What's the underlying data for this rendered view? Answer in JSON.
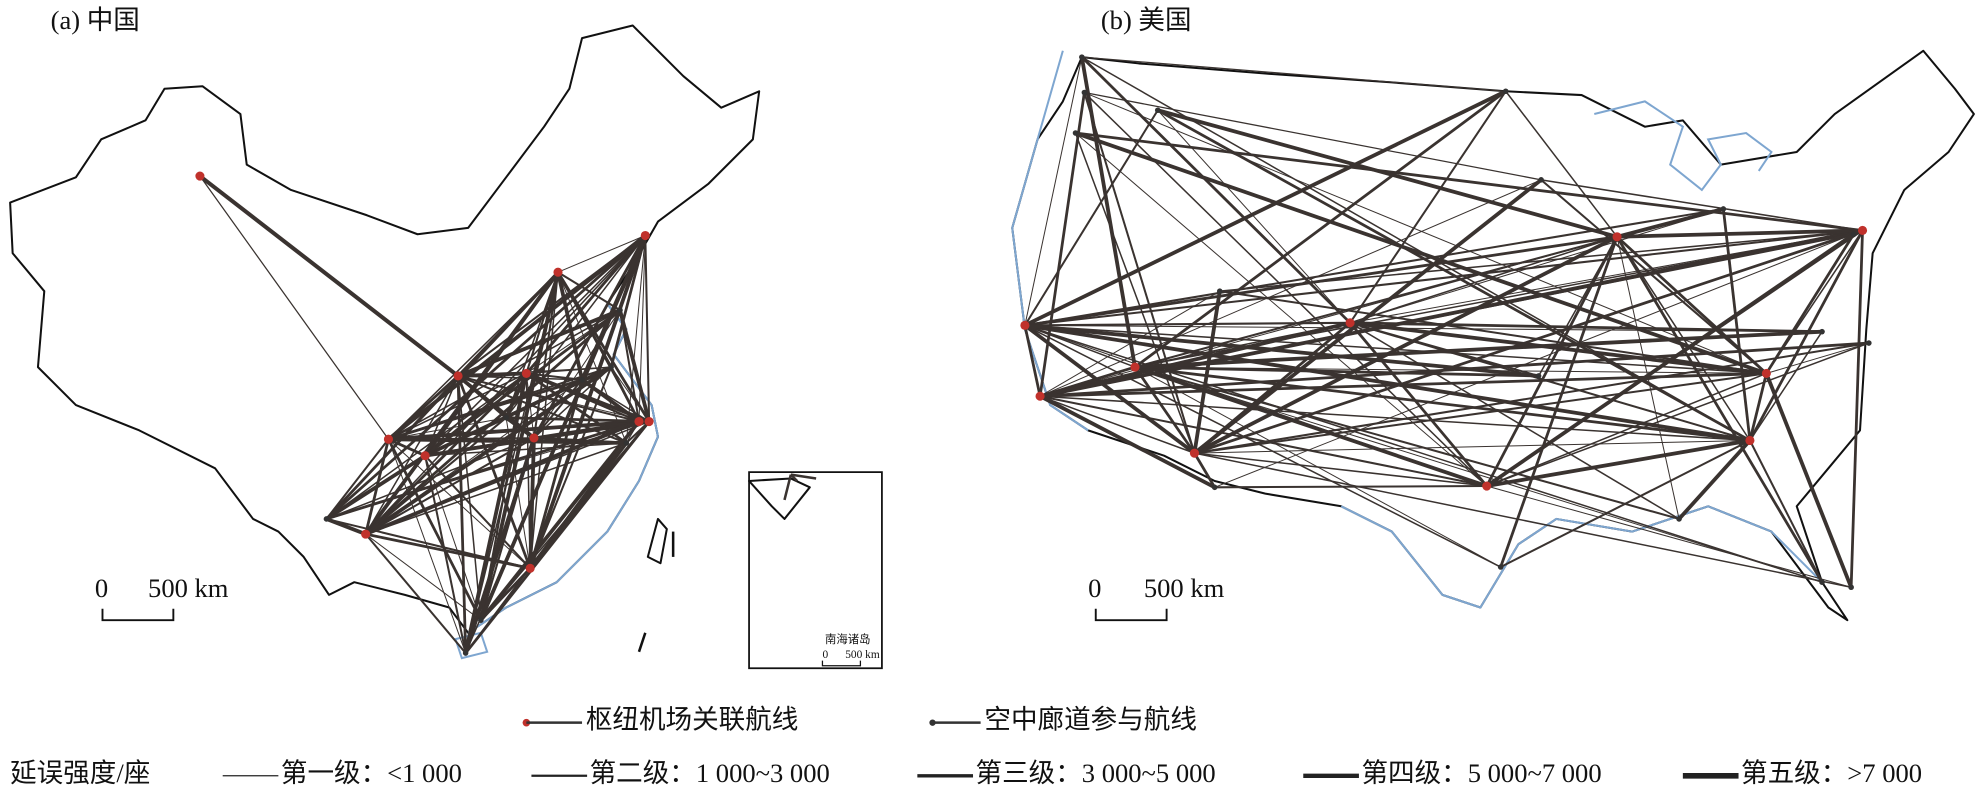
{
  "panels": [
    {
      "label": "(a) 中国",
      "scale_bar": {
        "zero": "0",
        "distance": "500 km"
      },
      "inset": {
        "title": "南海诸岛",
        "zero": "0",
        "distance": "500 km"
      }
    },
    {
      "label": "(b) 美国",
      "scale_bar": {
        "zero": "0",
        "distance": "500 km"
      }
    }
  ],
  "legend": {
    "route_types": [
      "枢纽机场关联航线",
      "空中廊道参与航线"
    ],
    "delay_title": "延误强度/座",
    "delay_levels": [
      "第一级：<1 000",
      "第二级：1 000~3 000",
      "第三级：3 000~5 000",
      "第四级：5 000~7 000",
      "第五级：>7 000"
    ]
  }
}
